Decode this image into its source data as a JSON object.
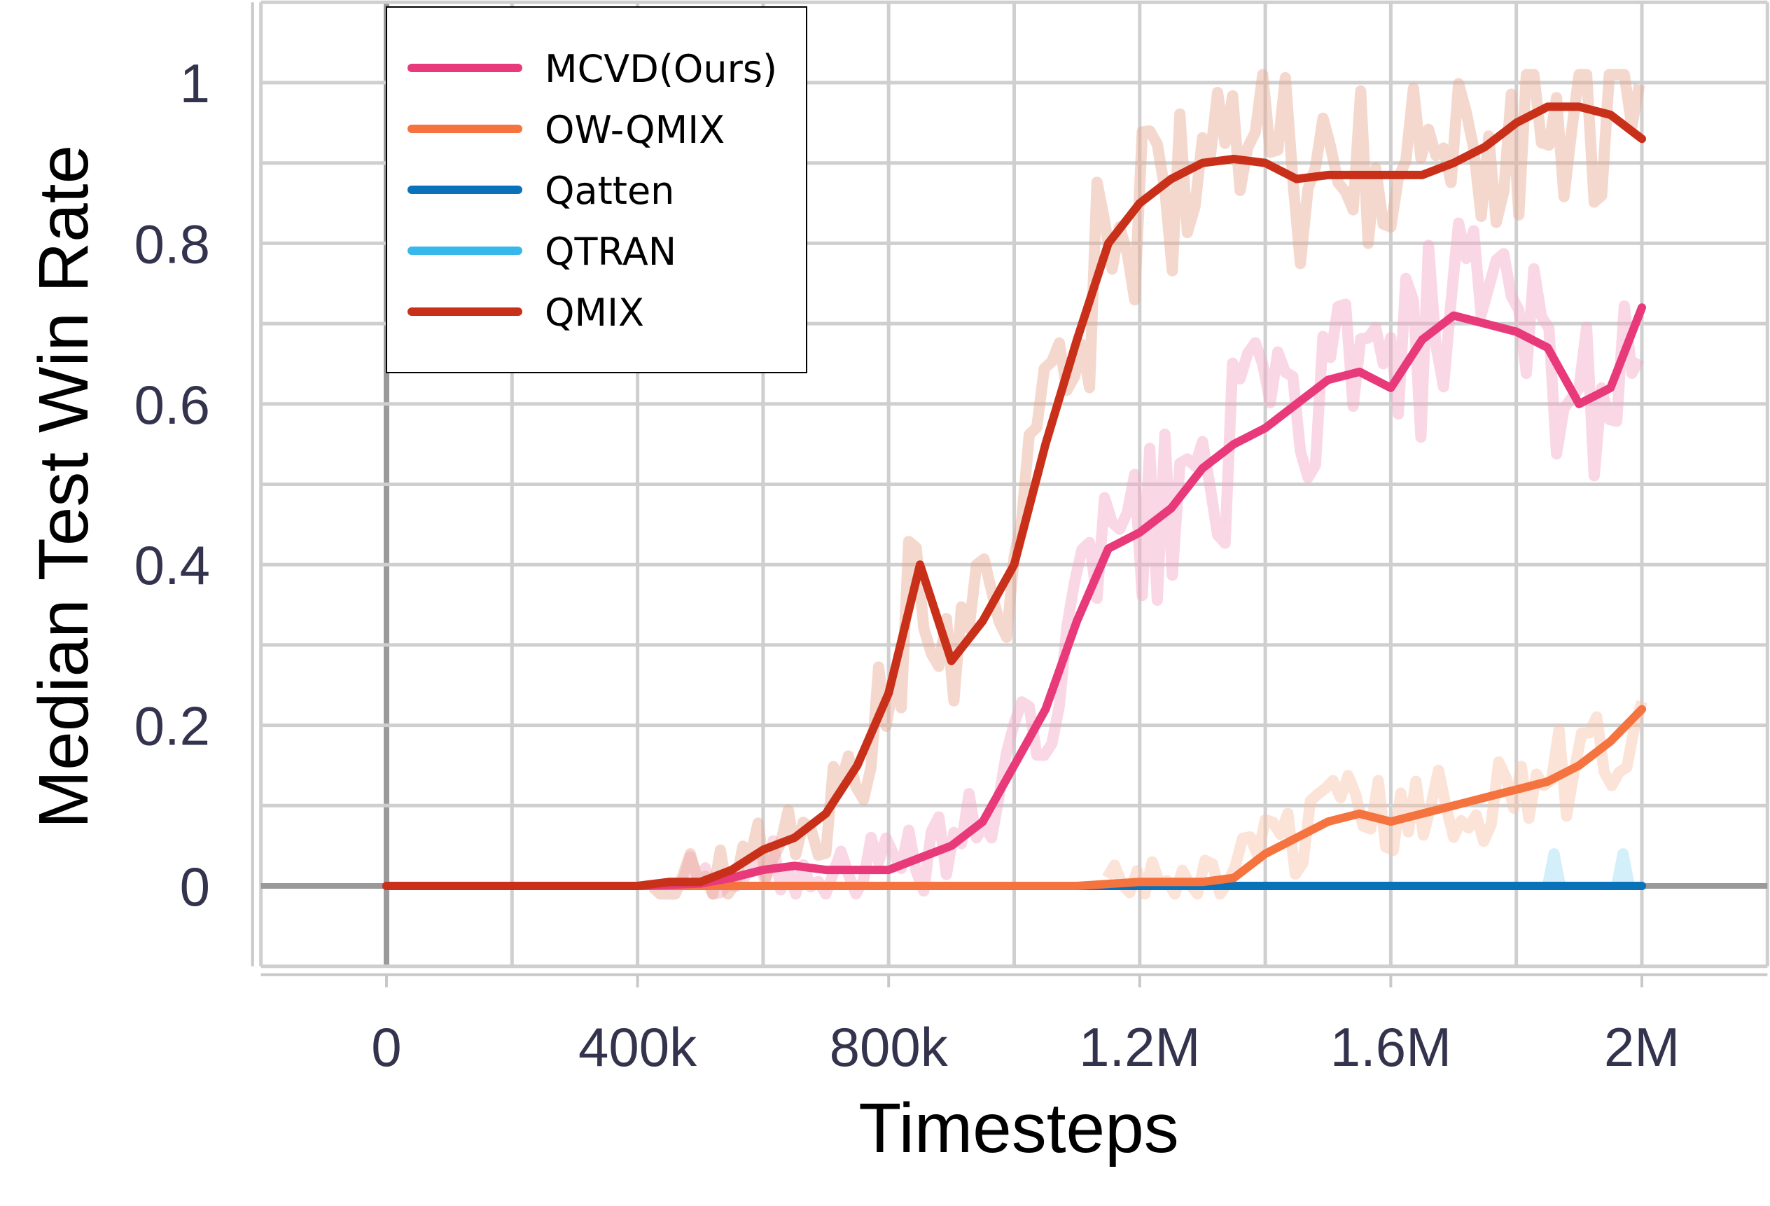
{
  "chart_data": {
    "type": "line",
    "title": "",
    "xlabel": "Timesteps",
    "ylabel": "Median Test Win Rate",
    "xlim": [
      -200000,
      2200000
    ],
    "ylim": [
      -0.1,
      1.1
    ],
    "xticks": [
      0,
      400000,
      800000,
      1200000,
      1600000,
      2000000
    ],
    "xtick_labels": [
      "0",
      "400k",
      "800k",
      "1.2M",
      "1.6M",
      "2M"
    ],
    "yticks": [
      0,
      0.2,
      0.4,
      0.6,
      0.8,
      1
    ],
    "ytick_labels": [
      "0",
      "0.2",
      "0.4",
      "0.6",
      "0.8",
      "1"
    ],
    "grid": true,
    "legend_position": "top-left",
    "series": [
      {
        "name": "MCVD(Ours)",
        "color": "#e8397a",
        "x": [
          0,
          400000,
          500000,
          550000,
          600000,
          650000,
          700000,
          750000,
          800000,
          850000,
          900000,
          950000,
          1000000,
          1050000,
          1100000,
          1150000,
          1200000,
          1250000,
          1300000,
          1350000,
          1400000,
          1450000,
          1500000,
          1550000,
          1600000,
          1650000,
          1700000,
          1750000,
          1800000,
          1850000,
          1900000,
          1950000,
          2000000
        ],
        "values": [
          0,
          0,
          0.003,
          0.01,
          0.02,
          0.025,
          0.02,
          0.02,
          0.02,
          0.035,
          0.05,
          0.08,
          0.15,
          0.22,
          0.33,
          0.42,
          0.44,
          0.47,
          0.52,
          0.55,
          0.57,
          0.6,
          0.63,
          0.64,
          0.62,
          0.68,
          0.71,
          0.7,
          0.69,
          0.67,
          0.6,
          0.62,
          0.72
        ]
      },
      {
        "name": "OW-QMIX",
        "color": "#f5733f",
        "x": [
          0,
          1100000,
          1200000,
          1300000,
          1350000,
          1400000,
          1450000,
          1500000,
          1550000,
          1600000,
          1650000,
          1700000,
          1750000,
          1800000,
          1850000,
          1900000,
          1950000,
          2000000
        ],
        "values": [
          0,
          0,
          0.005,
          0.005,
          0.01,
          0.04,
          0.06,
          0.08,
          0.09,
          0.08,
          0.09,
          0.1,
          0.11,
          0.12,
          0.13,
          0.15,
          0.18,
          0.22
        ]
      },
      {
        "name": "Qatten",
        "color": "#0a72b8",
        "x": [
          0,
          2000000
        ],
        "values": [
          0,
          0
        ]
      },
      {
        "name": "QTRAN",
        "color": "#38b8ea",
        "x": [
          0,
          2000000
        ],
        "values": [
          0,
          0
        ]
      },
      {
        "name": "QMIX",
        "color": "#c9301a",
        "x": [
          0,
          400000,
          450000,
          500000,
          550000,
          600000,
          650000,
          700000,
          750000,
          800000,
          850000,
          900000,
          950000,
          1000000,
          1050000,
          1100000,
          1150000,
          1200000,
          1250000,
          1300000,
          1350000,
          1400000,
          1450000,
          1500000,
          1550000,
          1600000,
          1650000,
          1700000,
          1750000,
          1800000,
          1850000,
          1900000,
          1950000,
          2000000
        ],
        "values": [
          0,
          0,
          0.005,
          0.005,
          0.02,
          0.045,
          0.06,
          0.09,
          0.15,
          0.24,
          0.4,
          0.28,
          0.33,
          0.4,
          0.55,
          0.68,
          0.8,
          0.85,
          0.88,
          0.9,
          0.905,
          0.9,
          0.88,
          0.885,
          0.885,
          0.885,
          0.885,
          0.9,
          0.92,
          0.95,
          0.97,
          0.97,
          0.96,
          0.93
        ]
      }
    ]
  }
}
